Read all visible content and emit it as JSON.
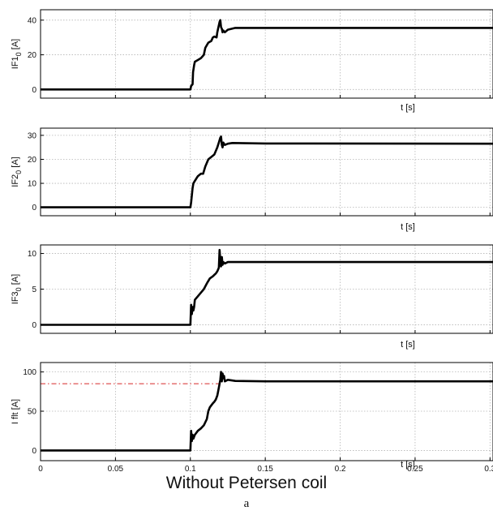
{
  "caption": {
    "title": "Without Petersen coil",
    "sublabel": "a"
  },
  "chart_data": [
    {
      "type": "line",
      "ylabel": "IF1_0 [A]",
      "ylabel_main": "IF1",
      "ylabel_sub": "0",
      "ylabel_unit": " [A]",
      "xlabel": "t [s]",
      "xlim": [
        0,
        0.302
      ],
      "ylim": [
        -5,
        46
      ],
      "yticks": [
        0,
        20,
        40
      ],
      "show_xtick_labels": false,
      "grid": true,
      "series": [
        {
          "color": "#000000",
          "x": [
            0,
            0.1,
            0.1005,
            0.1015,
            0.1018,
            0.1025,
            0.103,
            0.105,
            0.107,
            0.109,
            0.11,
            0.112,
            0.114,
            0.115,
            0.116,
            0.1175,
            0.118,
            0.119,
            0.1195,
            0.12,
            0.1205,
            0.121,
            0.1215,
            0.122,
            0.123,
            0.125,
            0.13,
            0.15,
            0.302
          ],
          "y": [
            0,
            0,
            2,
            3,
            10,
            14,
            16,
            17,
            18,
            20,
            24,
            27,
            28,
            30,
            30.5,
            30,
            33,
            37,
            39,
            40,
            36,
            35,
            33,
            34,
            33,
            34.5,
            35.5,
            35.5,
            35.5
          ]
        }
      ]
    },
    {
      "type": "line",
      "ylabel": "IF2_0 [A]",
      "ylabel_main": "IF2",
      "ylabel_sub": "0",
      "ylabel_unit": " [A]",
      "xlabel": "t [s]",
      "xlim": [
        0,
        0.302
      ],
      "ylim": [
        -3.5,
        33
      ],
      "yticks": [
        0,
        10,
        20,
        30
      ],
      "show_xtick_labels": false,
      "grid": true,
      "series": [
        {
          "color": "#000000",
          "x": [
            0,
            0.1,
            0.1005,
            0.1015,
            0.102,
            0.103,
            0.105,
            0.107,
            0.1085,
            0.11,
            0.112,
            0.114,
            0.116,
            0.118,
            0.119,
            0.12,
            0.1205,
            0.121,
            0.1215,
            0.122,
            0.123,
            0.125,
            0.128,
            0.15,
            0.302
          ],
          "y": [
            0,
            0,
            2,
            8,
            10,
            11,
            13,
            14,
            14,
            17,
            20,
            21,
            22,
            25,
            27,
            29,
            29.5,
            26,
            25,
            27,
            26,
            26.5,
            26.8,
            26.6,
            26.5
          ]
        }
      ]
    },
    {
      "type": "line",
      "ylabel": "IF3_0 [A]",
      "ylabel_main": "IF3",
      "ylabel_sub": "0",
      "ylabel_unit": " [A]",
      "xlabel": "t [s]",
      "xlim": [
        0,
        0.302
      ],
      "ylim": [
        -1.2,
        11.2
      ],
      "yticks": [
        0,
        5,
        10
      ],
      "show_xtick_labels": false,
      "grid": true,
      "series": [
        {
          "color": "#000000",
          "x": [
            0,
            0.1,
            0.1005,
            0.101,
            0.1015,
            0.102,
            0.1025,
            0.103,
            0.105,
            0.107,
            0.109,
            0.111,
            0.113,
            0.115,
            0.116,
            0.117,
            0.118,
            0.119,
            0.1195,
            0.12,
            0.1205,
            0.121,
            0.1215,
            0.122,
            0.123,
            0.125,
            0.15,
            0.302
          ],
          "y": [
            0,
            0,
            2.8,
            1.5,
            2.5,
            2,
            2.5,
            3.5,
            4,
            4.5,
            5,
            5.8,
            6.5,
            6.8,
            7,
            7.2,
            7.5,
            8,
            10.5,
            9,
            8.2,
            9.5,
            8.4,
            8.8,
            8.6,
            8.8,
            8.8,
            8.8
          ]
        }
      ]
    },
    {
      "type": "line",
      "ylabel": "I flt [A]",
      "ylabel_main": "I flt",
      "ylabel_sub": "",
      "ylabel_unit": " [A]",
      "xlabel": "t [s]",
      "xlim": [
        0,
        0.302
      ],
      "ylim": [
        -13,
        112
      ],
      "yticks": [
        0,
        50,
        100
      ],
      "xticks": [
        0,
        0.05,
        0.1,
        0.15,
        0.2,
        0.25,
        0.3
      ],
      "xtick_labels": [
        "0",
        "0.05",
        "0.1",
        "0.15",
        "0.2",
        "0.25",
        "0.3"
      ],
      "show_xtick_labels": true,
      "grid": true,
      "threshold": {
        "y": 85,
        "x_end": 0.121,
        "color": "#d62728"
      },
      "series": [
        {
          "color": "#000000",
          "x": [
            0,
            0.1,
            0.1005,
            0.101,
            0.1015,
            0.102,
            0.103,
            0.105,
            0.107,
            0.109,
            0.111,
            0.112,
            0.113,
            0.115,
            0.116,
            0.117,
            0.118,
            0.119,
            0.12,
            0.1205,
            0.121,
            0.1215,
            0.122,
            0.1225,
            0.123,
            0.125,
            0.13,
            0.15,
            0.302
          ],
          "y": [
            0,
            0,
            25,
            12,
            20,
            15,
            20,
            25,
            28,
            32,
            40,
            50,
            55,
            60,
            62,
            65,
            70,
            80,
            90,
            100,
            88,
            98,
            92,
            95,
            88,
            90,
            88.5,
            88,
            88
          ]
        }
      ]
    }
  ]
}
